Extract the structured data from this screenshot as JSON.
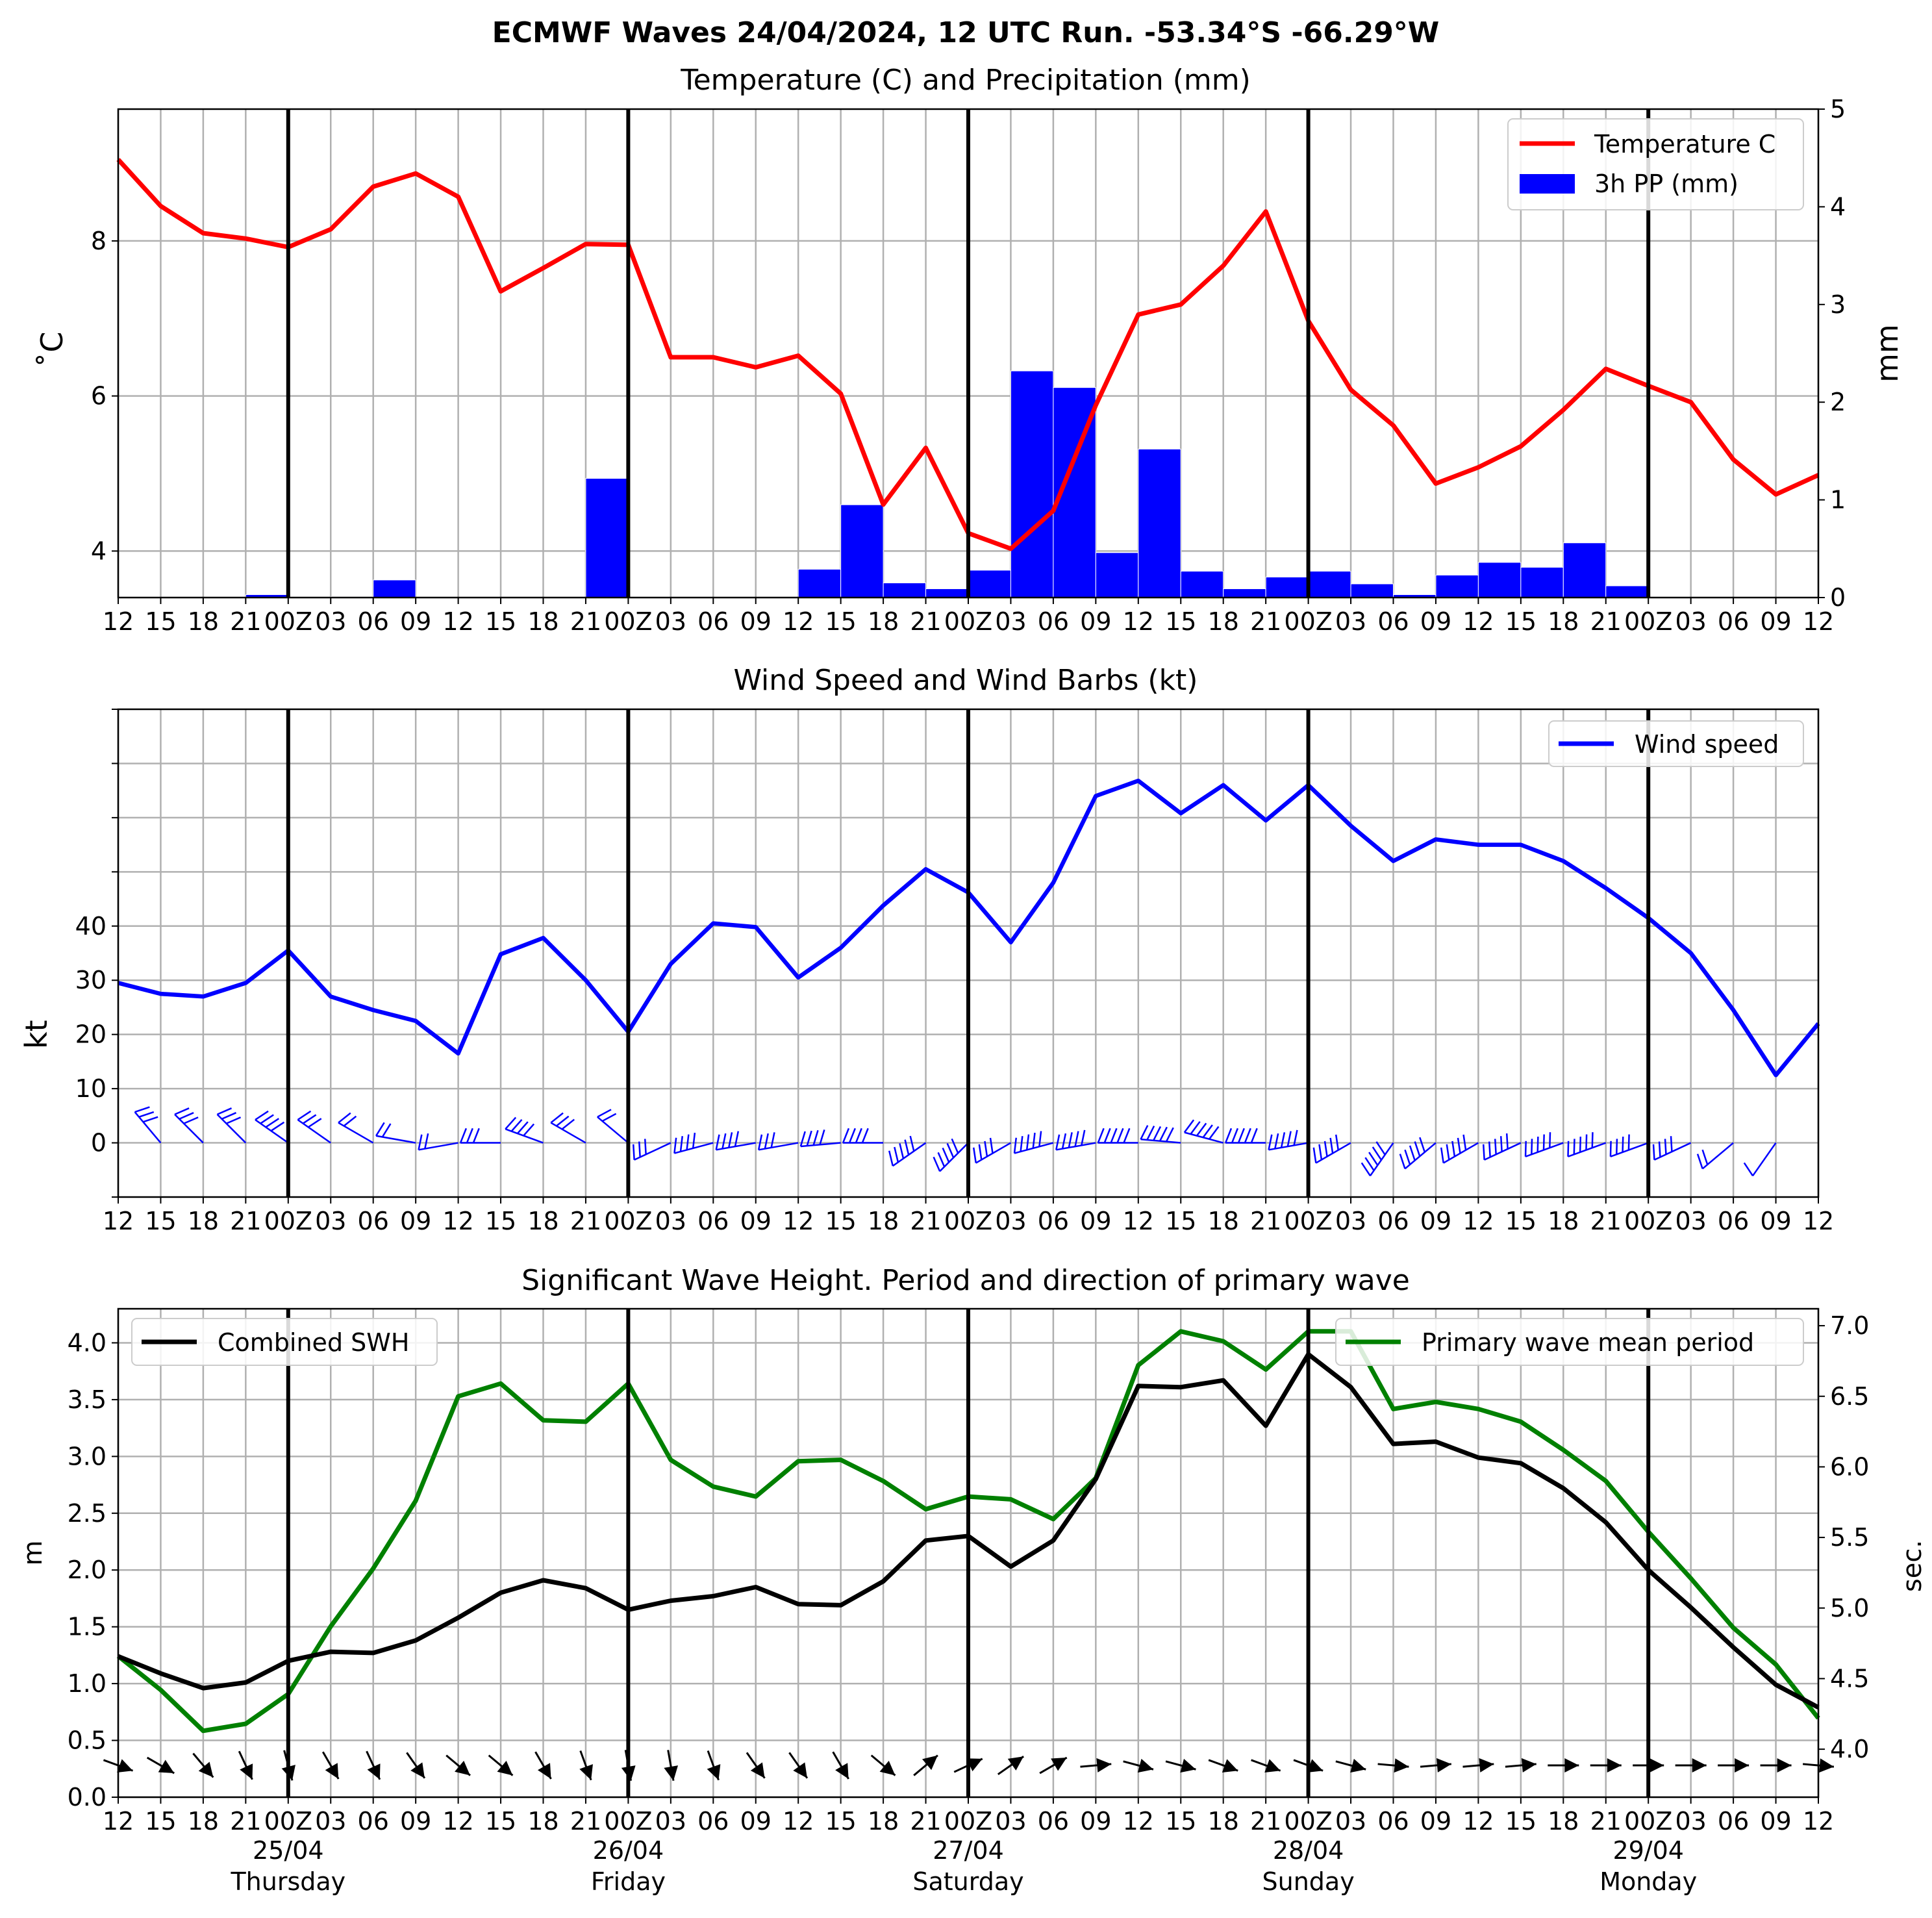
{
  "title": "ECMWF Waves 24/04/2024, 12 UTC Run. -53.34°S -66.29°W",
  "x_ticks": [
    "12",
    "15",
    "18",
    "21",
    "00Z",
    "03",
    "06",
    "09",
    "12",
    "15",
    "18",
    "21",
    "00Z",
    "03",
    "06",
    "09",
    "12",
    "15",
    "18",
    "21",
    "00Z",
    "03",
    "06",
    "09",
    "12",
    "15",
    "18",
    "21",
    "00Z",
    "03",
    "06",
    "09",
    "12",
    "15",
    "18",
    "21",
    "00Z",
    "03",
    "06",
    "09",
    "12"
  ],
  "day_labels": [
    {
      "date": "25/04",
      "day": "Thursday"
    },
    {
      "date": "26/04",
      "day": "Friday"
    },
    {
      "date": "27/04",
      "day": "Saturday"
    },
    {
      "date": "28/04",
      "day": "Sunday"
    },
    {
      "date": "29/04",
      "day": "Monday"
    }
  ],
  "colors": {
    "temperature": "#ff0000",
    "precip": "#0000ff",
    "wind": "#0000ff",
    "swh": "#000000",
    "period": "#008000",
    "grid": "#b0b0b0"
  },
  "chart_data": [
    {
      "type": "line",
      "title": "Temperature (C) and Precipitation (mm)",
      "ylabel": "˚C",
      "y2label": "mm",
      "ylim": [
        3.4,
        9.7
      ],
      "y_ticks": [
        4,
        6,
        8
      ],
      "y2lim": [
        0,
        5
      ],
      "y2_ticks": [
        0,
        1,
        2,
        3,
        4,
        5
      ],
      "grid": true,
      "legend_position": "top-right",
      "series": [
        {
          "name": "Temperature C",
          "axis": "left",
          "values": [
            9.05,
            8.45,
            8.1,
            8.03,
            7.92,
            8.15,
            8.7,
            8.87,
            8.57,
            7.35,
            7.65,
            7.96,
            7.95,
            6.5,
            6.5,
            6.37,
            6.52,
            6.03,
            4.6,
            5.33,
            4.23,
            4.03,
            4.52,
            5.88,
            7.05,
            7.18,
            7.68,
            8.38,
            6.97,
            6.08,
            5.62,
            4.87,
            5.08,
            5.35,
            5.82,
            6.35,
            6.13,
            5.92,
            5.18,
            4.73,
            4.98
          ]
        },
        {
          "name": "3h PP (mm)",
          "axis": "right",
          "kind": "bar",
          "values": [
            0,
            0,
            0,
            0,
            0.03,
            0,
            0.01,
            0.18,
            0,
            0,
            0,
            0,
            1.22,
            0,
            0,
            0,
            0,
            0.29,
            0.95,
            0.15,
            0.09,
            0.28,
            2.32,
            2.15,
            0.46,
            1.52,
            0.27,
            0.09,
            0.21,
            0.27,
            0.14,
            0.03,
            0.23,
            0.36,
            0.31,
            0.56,
            0.12,
            0,
            0,
            0,
            0
          ]
        }
      ]
    },
    {
      "type": "line",
      "title": "Wind Speed and Wind Barbs (kt)",
      "ylabel": "kt",
      "ylim": [
        -10,
        80
      ],
      "y_ticks": [
        0,
        10,
        20,
        30,
        40
      ],
      "grid": true,
      "legend_position": "top-right",
      "series": [
        {
          "name": "Wind speed",
          "values": [
            29.5,
            27.5,
            27.0,
            29.5,
            35.5,
            27.0,
            24.5,
            22.5,
            16.5,
            34.8,
            37.8,
            30.0,
            20.5,
            33.0,
            40.5,
            39.8,
            30.5,
            36.0,
            43.8,
            50.5,
            46.2,
            37.0,
            48.0,
            64.0,
            66.8,
            60.8,
            66.0,
            59.5,
            66.0,
            58.5,
            52.0,
            56.0,
            55.0,
            55.0,
            52.0,
            47.0,
            41.5,
            35.0,
            24.5,
            12.5,
            22.0
          ]
        }
      ],
      "barb_directions_deg": [
        330,
        320,
        315,
        315,
        305,
        305,
        300,
        280,
        260,
        270,
        290,
        300,
        310,
        245,
        255,
        260,
        260,
        265,
        270,
        235,
        225,
        240,
        255,
        260,
        270,
        275,
        285,
        270,
        260,
        240,
        215,
        230,
        240,
        245,
        250,
        250,
        250,
        245,
        230,
        215,
        200
      ]
    },
    {
      "type": "line",
      "title": "Significant Wave Height. Period and direction of primary wave",
      "ylabel": "m",
      "y2label": "sec.",
      "ylim": [
        0,
        4.3
      ],
      "y_ticks": [
        0.0,
        0.5,
        1.0,
        1.5,
        2.0,
        2.5,
        3.0,
        3.5,
        4.0
      ],
      "y2lim": [
        3.66,
        7.12
      ],
      "y2_ticks": [
        4.0,
        4.5,
        5.0,
        5.5,
        6.0,
        6.5,
        7.0
      ],
      "grid": true,
      "series": [
        {
          "name": "Combined SWH",
          "axis": "left",
          "legend_position": "top-left",
          "values": [
            1.24,
            1.09,
            0.96,
            1.01,
            1.2,
            1.28,
            1.27,
            1.38,
            1.58,
            1.8,
            1.91,
            1.84,
            1.65,
            1.73,
            1.77,
            1.85,
            1.7,
            1.69,
            1.9,
            2.26,
            2.3,
            2.03,
            2.26,
            2.8,
            3.62,
            3.61,
            3.67,
            3.27,
            3.9,
            3.61,
            3.11,
            3.13,
            2.99,
            2.94,
            2.72,
            2.42,
            2.0,
            1.67,
            1.32,
            0.99,
            0.79
          ]
        },
        {
          "name": "Primary wave mean period",
          "axis": "right",
          "legend_position": "top-right",
          "values": [
            4.66,
            4.42,
            4.13,
            4.18,
            4.39,
            4.87,
            5.28,
            5.76,
            6.5,
            6.59,
            6.33,
            6.32,
            6.59,
            6.05,
            5.86,
            5.79,
            6.04,
            6.05,
            5.9,
            5.7,
            5.79,
            5.77,
            5.63,
            5.92,
            6.72,
            6.96,
            6.89,
            6.69,
            6.96,
            6.96,
            6.41,
            6.46,
            6.41,
            6.32,
            6.12,
            5.9,
            5.54,
            5.21,
            4.86,
            4.6,
            4.22
          ]
        }
      ],
      "wave_directions_deg": [
        290,
        300,
        320,
        335,
        345,
        330,
        335,
        325,
        310,
        310,
        330,
        340,
        350,
        350,
        340,
        325,
        325,
        330,
        310,
        230,
        245,
        235,
        240,
        265,
        285,
        285,
        290,
        290,
        290,
        285,
        275,
        265,
        265,
        265,
        270,
        270,
        270,
        270,
        270,
        270,
        275
      ]
    }
  ]
}
